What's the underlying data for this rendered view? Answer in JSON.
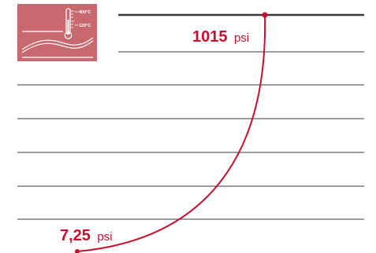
{
  "colors": {
    "accent": "#c8102e",
    "icon_bg": "#c8686f",
    "line": "#3a3a3a"
  },
  "icon": {
    "name": "thermometer-temperature-range-icon",
    "high_label": "400°C",
    "low_label": "120°C"
  },
  "pressure": {
    "high": {
      "value": "1015",
      "unit": "psi"
    },
    "low": {
      "value": "7,25",
      "unit": "psi"
    }
  }
}
